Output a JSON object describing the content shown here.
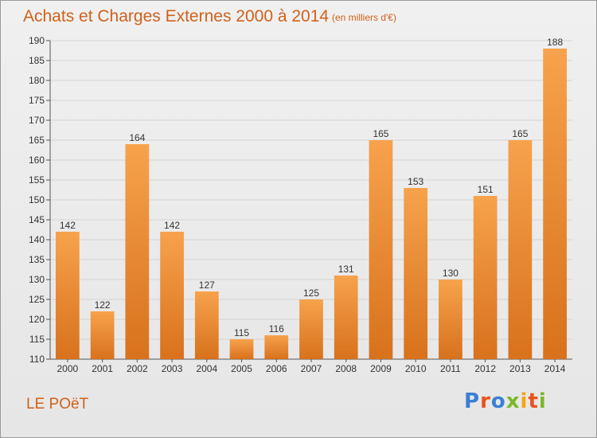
{
  "header": {
    "title": "Achats et Charges Externes 2000 à 2014",
    "subtitle": "(en milliers d'€)"
  },
  "footer": {
    "commune": "LE POëT",
    "logo_text": "Proxiti",
    "logo_colors": [
      "#3a7fd5",
      "#e8541b",
      "#3a7fd5",
      "#7ab929",
      "#f2a516",
      "#e8541b",
      "#7ab929"
    ]
  },
  "colors": {
    "bar_top": "#f7a24c",
    "bar_bottom": "#d8711c",
    "accent": "#d0611a",
    "grid": "#d4d4d4"
  },
  "chart_data": {
    "type": "bar",
    "title": "Achats et Charges Externes 2000 à 2014",
    "subtitle": "(en milliers d'€)",
    "categories": [
      "2000",
      "2001",
      "2002",
      "2003",
      "2004",
      "2005",
      "2006",
      "2007",
      "2008",
      "2009",
      "2010",
      "2011",
      "2012",
      "2013",
      "2014"
    ],
    "values": [
      142,
      122,
      164,
      142,
      127,
      115,
      116,
      125,
      131,
      165,
      153,
      130,
      151,
      165,
      188
    ],
    "ylim": [
      110,
      190
    ],
    "yticks": [
      110,
      115,
      120,
      125,
      130,
      135,
      140,
      145,
      150,
      155,
      160,
      165,
      170,
      175,
      180,
      185,
      190
    ],
    "grid": true,
    "xlabel": "",
    "ylabel": ""
  }
}
